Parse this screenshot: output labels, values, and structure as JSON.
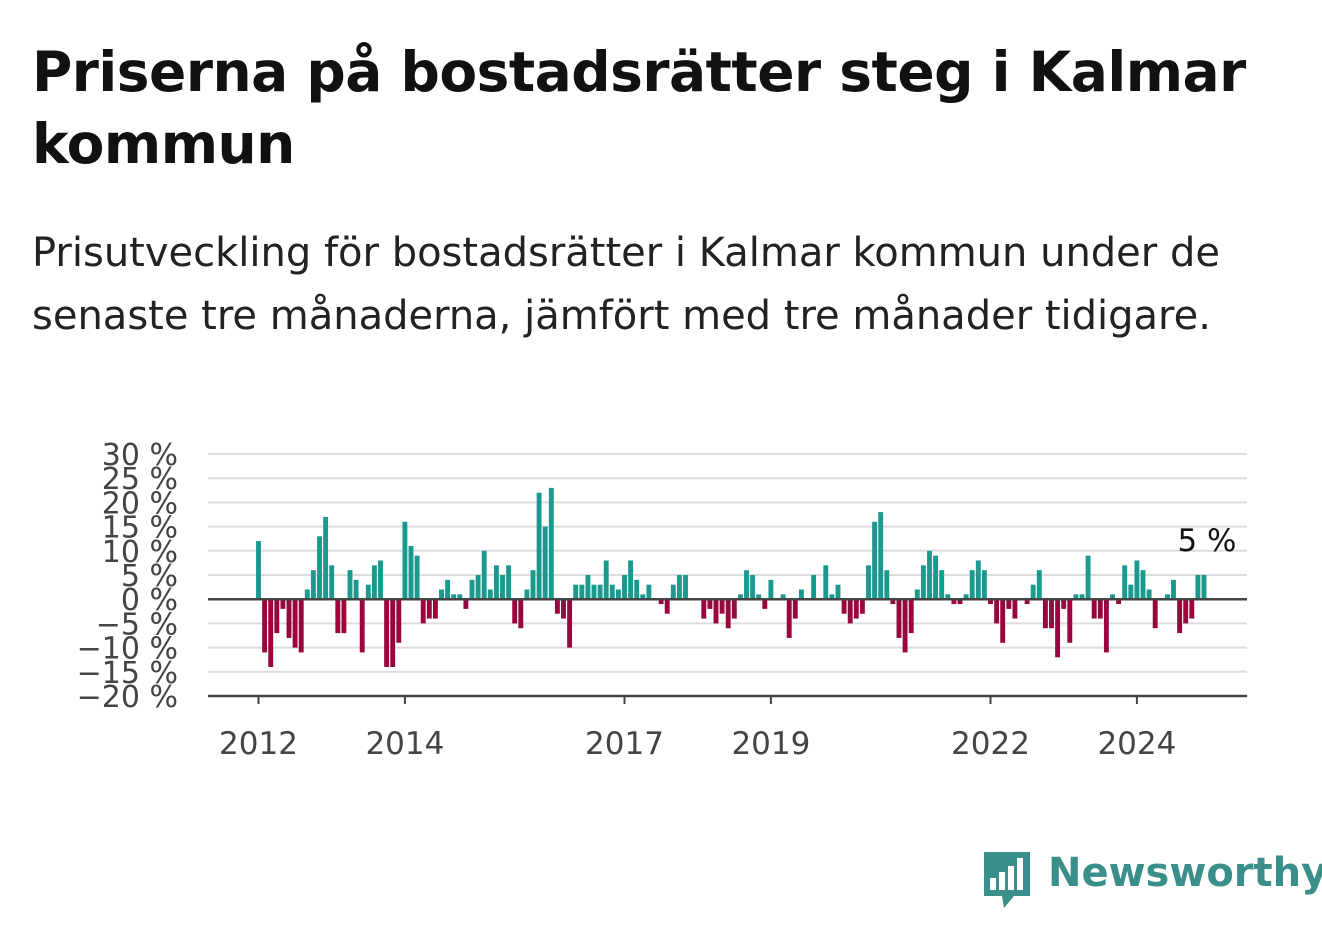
{
  "title": "Priserna på bostadsrätter steg i Kalmar kommun",
  "subtitle": "Prisutveckling för bostadsrätter i Kalmar kommun under de senaste tre månaderna, jämfört med tre månader tidigare.",
  "brand": "Newsworthy",
  "colors": {
    "positive": "#1a9a8f",
    "negative": "#99063f",
    "grid": "#dddddd",
    "axis": "#444444",
    "brand": "#3a8f8a"
  },
  "chart_data": {
    "type": "bar",
    "title": "",
    "xlabel": "",
    "ylabel": "",
    "ylim": [
      -20,
      30
    ],
    "y_ticks": [
      30,
      25,
      20,
      15,
      10,
      5,
      0,
      -5,
      -10,
      -15,
      -20
    ],
    "y_tick_labels": [
      "30 %",
      "25 %",
      "20 %",
      "15 %",
      "10 %",
      "5 %",
      "0 %",
      "−5 %",
      "−10 %",
      "−15 %",
      "−20 %"
    ],
    "x_ticks": [
      "2012",
      "2014",
      "2017",
      "2019",
      "2022",
      "2024"
    ],
    "grid": true,
    "last_value_label": "5 %",
    "start": "2012-01",
    "series": [
      {
        "values": [
          12,
          -11,
          -14,
          -7,
          -2,
          -8,
          -10,
          -11,
          2,
          6,
          13,
          17,
          7,
          -7,
          -7,
          6,
          4,
          -11,
          3,
          7,
          8,
          -14,
          -14,
          -9,
          16,
          11,
          9,
          -5,
          -4,
          -4,
          2,
          4,
          1,
          1,
          -2,
          4,
          5,
          10,
          2,
          7,
          5,
          7,
          -5,
          -6,
          2,
          6,
          22,
          15,
          23,
          -3,
          -4,
          -10,
          3,
          3,
          5,
          3,
          3,
          8,
          3,
          2,
          5,
          8,
          4,
          1,
          3,
          0,
          -1,
          -3,
          3,
          5,
          5,
          0,
          0,
          -4,
          -2,
          -5,
          -3,
          -6,
          -4,
          1,
          6,
          5,
          1,
          -2,
          4,
          0,
          1,
          -8,
          -4,
          2,
          0,
          5,
          0,
          7,
          1,
          3,
          -3,
          -5,
          -4,
          -3,
          7,
          16,
          18,
          6,
          -1,
          -8,
          -11,
          -7,
          2,
          7,
          10,
          9,
          6,
          1,
          -1,
          -1,
          1,
          6,
          8,
          6,
          -1,
          -5,
          -9,
          -2,
          -4,
          0,
          -1,
          3,
          6,
          -6,
          -6,
          -12,
          -2,
          -9,
          1,
          1,
          9,
          -4,
          -4,
          -11,
          1,
          -1,
          7,
          3,
          8,
          6,
          2,
          -6,
          0,
          1,
          4,
          -7,
          -5,
          -4,
          5,
          5
        ]
      }
    ]
  }
}
